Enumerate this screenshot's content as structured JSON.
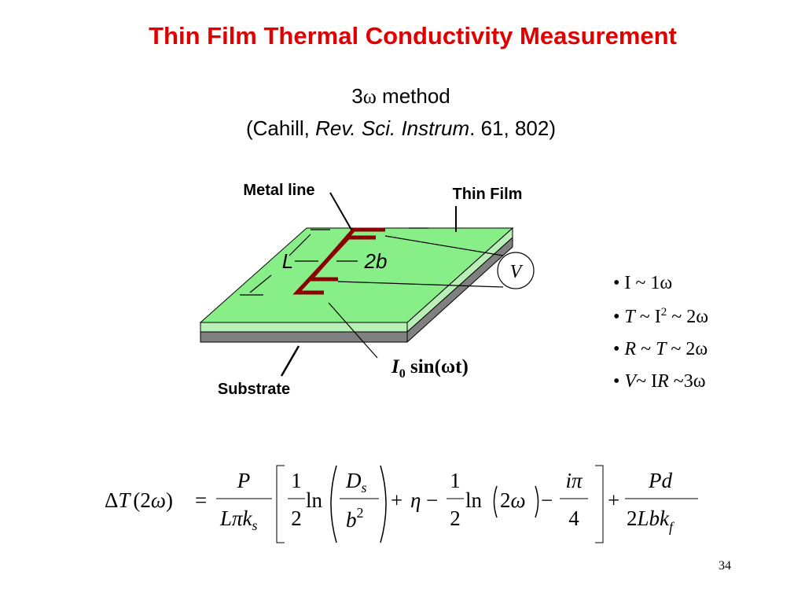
{
  "title": "Thin Film Thermal Conductivity Measurement",
  "subtitle": {
    "line1": [
      "3",
      "ω",
      " method"
    ],
    "line2": [
      "(Cahill, ",
      "Rev. Sci. Instrum",
      ". 61, 802)"
    ]
  },
  "diagram": {
    "metal_line": "Metal line",
    "thin_film": "Thin Film",
    "substrate": "Substrate",
    "L": "L",
    "two_b": "2b",
    "V": "V",
    "current": [
      "I",
      "0",
      " sin(",
      "ω",
      "t)"
    ]
  },
  "bullet": "•",
  "bullets": [
    [
      "I ~ 1",
      "ω"
    ],
    [
      "T",
      " ~ I",
      "2",
      " ~ 2",
      "ω"
    ],
    [
      "R",
      " ~ ",
      "T",
      " ~ 2",
      "ω"
    ],
    [
      "V",
      "~ I",
      "R",
      " ~3",
      "ω"
    ]
  ],
  "equation": [
    "Δ",
    "T",
    "(2",
    "ω",
    ")",
    "=",
    "P",
    "Lπk",
    "s",
    "1",
    "2",
    "ln",
    "D",
    "s",
    "b",
    "2",
    "+",
    "η",
    "−",
    "1",
    "2",
    "ln",
    "2",
    "ω",
    "−",
    "iπ",
    "4",
    "+",
    "Pd",
    "2",
    "Lbk",
    "f"
  ],
  "page_number": "34"
}
